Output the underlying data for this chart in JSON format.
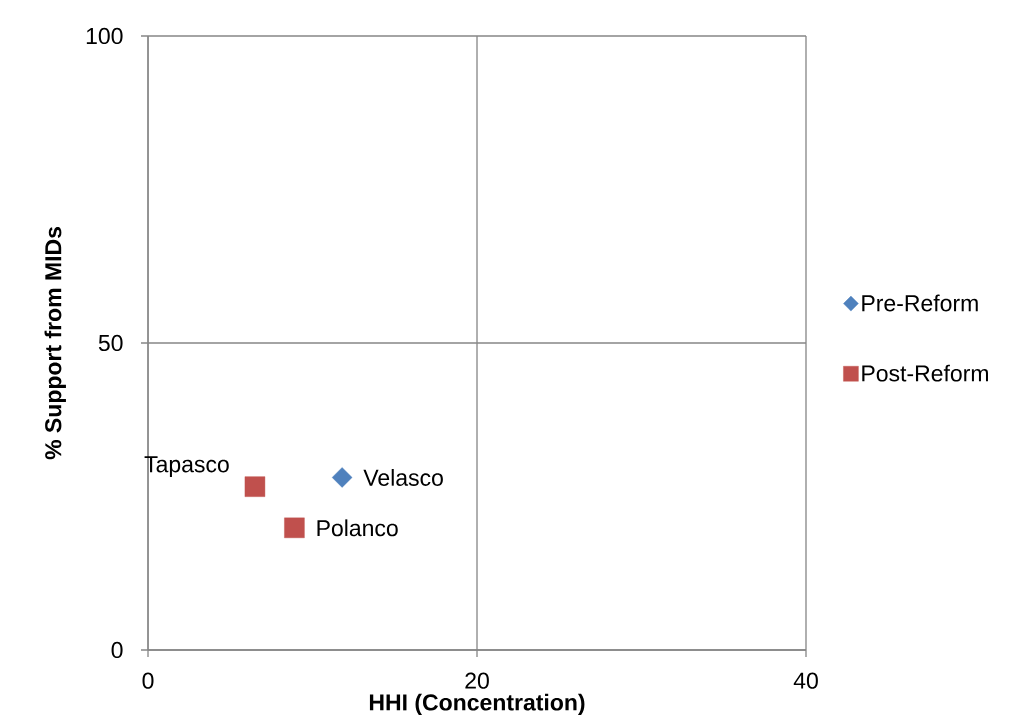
{
  "chart_data": {
    "type": "scatter",
    "xlabel": "HHI (Concentration)",
    "ylabel": "% Support from MIDs",
    "xlim": [
      0,
      40
    ],
    "ylim": [
      0,
      100
    ],
    "xticks": [
      0,
      20,
      40
    ],
    "yticks": [
      0,
      50,
      100
    ],
    "grid": true,
    "legend": "right",
    "series": [
      {
        "name": "Pre-Reform",
        "color": "#4f81bd",
        "marker": "diamond",
        "x": [
          11.8
        ],
        "values": [
          28.1
        ]
      },
      {
        "name": "Post-Reform",
        "color": "#c0504d",
        "marker": "square",
        "x": [
          6.5,
          8.9
        ],
        "values": [
          26.6,
          19.9
        ]
      }
    ],
    "annotations": [
      {
        "text": "Velasco",
        "x": 11.8,
        "y": 28.1
      },
      {
        "text": "Tapasco",
        "x": 6.5,
        "y": 26.6
      },
      {
        "text": "Polanco",
        "x": 8.9,
        "y": 19.9
      }
    ]
  }
}
